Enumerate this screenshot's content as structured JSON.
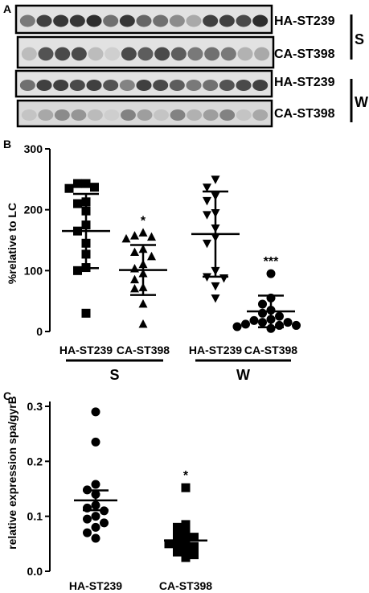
{
  "panel_a": {
    "label": "A",
    "blots": [
      {
        "label": "HA-ST239",
        "bands": [
          0.55,
          0.85,
          0.9,
          0.9,
          0.95,
          0.6,
          0.9,
          0.65,
          0.6,
          0.45,
          0.3,
          0.85,
          0.85,
          0.8,
          0.95
        ]
      },
      {
        "label": "CA-ST398",
        "bands": [
          0.2,
          0.75,
          0.8,
          0.8,
          0.2,
          0.1,
          0.8,
          0.7,
          0.8,
          0.7,
          0.55,
          0.6,
          0.55,
          0.25,
          0.3
        ]
      },
      {
        "label": "HA-ST239",
        "bands": [
          0.6,
          0.85,
          0.85,
          0.8,
          0.85,
          0.75,
          0.5,
          0.85,
          0.8,
          0.7,
          0.55,
          0.6,
          0.75,
          0.8,
          0.85
        ]
      },
      {
        "label": "CA-ST398",
        "bands": [
          0.15,
          0.3,
          0.45,
          0.4,
          0.2,
          0.1,
          0.5,
          0.35,
          0.15,
          0.5,
          0.25,
          0.35,
          0.5,
          0.15,
          0.3
        ]
      }
    ],
    "groups": [
      "S",
      "W"
    ]
  },
  "chart_data": [
    {
      "panel": "B",
      "type": "scatter",
      "ylabel": "%relative to LC",
      "ylim": [
        0,
        300
      ],
      "yticks": [
        "0",
        "100",
        "200",
        "300"
      ],
      "categories": [
        "HA-ST239",
        "CA-ST398",
        "HA-ST239",
        "CA-ST398"
      ],
      "group_labels": [
        {
          "label": "S",
          "span": [
            0,
            1
          ]
        },
        {
          "label": "W",
          "span": [
            2,
            3
          ]
        }
      ],
      "series": [
        {
          "marker": "square",
          "values": [
            243,
            243,
            237,
            235,
            213,
            210,
            198,
            175,
            165,
            145,
            127,
            105,
            100,
            30
          ],
          "mean": 165,
          "sd": 61
        },
        {
          "marker": "triangle-up",
          "values": [
            162,
            157,
            155,
            152,
            135,
            130,
            123,
            110,
            103,
            95,
            85,
            72,
            70,
            45,
            12
          ],
          "mean": 101,
          "sd": 41,
          "annotation": "*"
        },
        {
          "marker": "triangle-down",
          "values": [
            250,
            237,
            223,
            215,
            195,
            192,
            170,
            155,
            145,
            100,
            90,
            88,
            75,
            55
          ],
          "mean": 160,
          "sd": 70
        },
        {
          "marker": "circle",
          "values": [
            95,
            55,
            45,
            35,
            30,
            25,
            20,
            18,
            15,
            15,
            12,
            10,
            10,
            8,
            5
          ],
          "mean": 33,
          "sd": 26,
          "annotation": "***"
        }
      ]
    },
    {
      "panel": "C",
      "type": "scatter",
      "ylabel": "relative expression spa/gyrB",
      "ylim": [
        0,
        0.3
      ],
      "yticks": [
        "0.0",
        "0.1",
        "0.2",
        "0.3"
      ],
      "categories": [
        "HA-ST239",
        "CA-ST398"
      ],
      "series": [
        {
          "marker": "circle",
          "values": [
            0.29,
            0.235,
            0.158,
            0.148,
            0.14,
            0.12,
            0.115,
            0.11,
            0.1,
            0.095,
            0.088,
            0.08,
            0.07,
            0.06
          ],
          "mean": 0.129,
          "sd_error": 0.018
        },
        {
          "marker": "square",
          "values": [
            0.152,
            0.085,
            0.08,
            0.07,
            0.065,
            0.062,
            0.055,
            0.05,
            0.05,
            0.045,
            0.04,
            0.035,
            0.03,
            0.025
          ],
          "mean": 0.056,
          "sd_error": 0.01,
          "annotation": "*"
        }
      ]
    }
  ],
  "labels": {
    "panel_b": "B",
    "panel_c": "C"
  }
}
